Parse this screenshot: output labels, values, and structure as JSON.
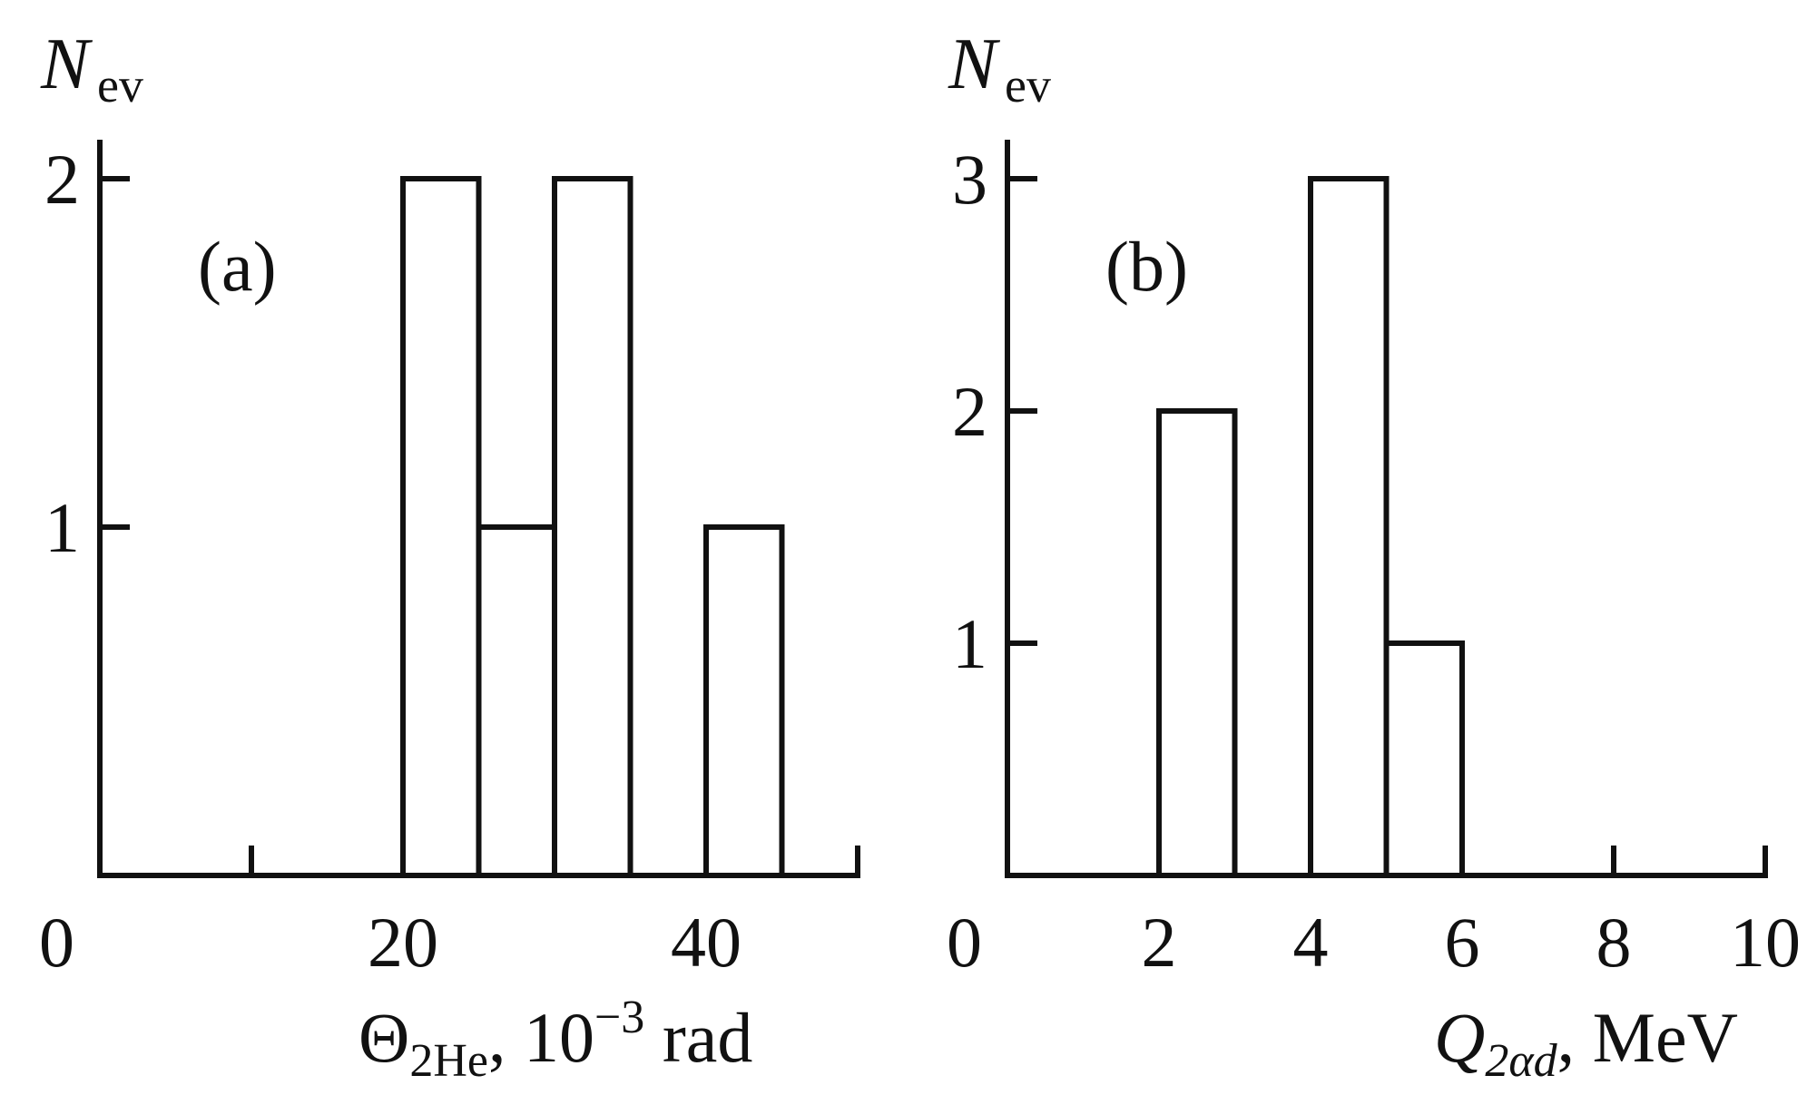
{
  "chart_data": [
    {
      "type": "bar",
      "panel_label": "(a)",
      "ylabel": {
        "main": "N",
        "sub": "ev"
      },
      "xlabel": {
        "symbol": "Θ",
        "sub": "2He",
        "sep": ", ",
        "unit_base": "10",
        "unit_exp": "−3",
        "unit_tail": " rad"
      },
      "xlim": [
        0,
        50
      ],
      "ylim": [
        0,
        2
      ],
      "xticks_major": [
        0,
        20,
        40
      ],
      "xticks_minor": [
        10,
        30,
        50
      ],
      "yticks": [
        1,
        2
      ],
      "bin_edges": [
        0,
        5,
        10,
        15,
        20,
        25,
        30,
        35,
        40,
        45,
        50
      ],
      "values": [
        0,
        0,
        0,
        0,
        2,
        1,
        2,
        0,
        1,
        0
      ]
    },
    {
      "type": "bar",
      "panel_label": "(b)",
      "ylabel": {
        "main": "N",
        "sub": "ev"
      },
      "xlabel": {
        "symbol": "Q",
        "sub": "2αd",
        "sep": ", ",
        "unit": "MeV"
      },
      "xlim": [
        0,
        10
      ],
      "ylim": [
        0,
        3
      ],
      "xticks_major": [
        0,
        2,
        4,
        6,
        8,
        10
      ],
      "xticks_minor": [],
      "yticks": [
        1,
        2,
        3
      ],
      "bin_edges": [
        0,
        1,
        2,
        3,
        4,
        5,
        6,
        7,
        8,
        9,
        10
      ],
      "values": [
        0,
        0,
        2,
        0,
        3,
        1,
        0,
        0,
        0,
        0
      ]
    }
  ]
}
